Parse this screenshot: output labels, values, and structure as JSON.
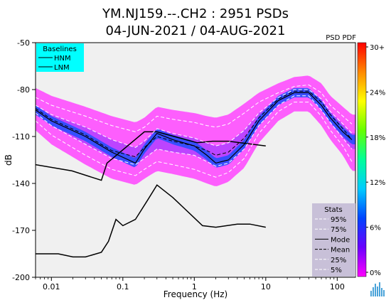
{
  "chart_data": {
    "type": "heatmap",
    "title_line1": "YM.NJ159.--.CH2 : 2951 PSDs",
    "title_line2": "04-JUN-2021 / 04-AUG-2021",
    "xlabel": "Frequency (Hz)",
    "ylabel": "dB",
    "xscale": "log",
    "xlim": [
      0.006,
      180
    ],
    "ylim": [
      -200,
      -50
    ],
    "y_ticks": [
      -50,
      -80,
      -110,
      -140,
      -170,
      -200
    ],
    "x_ticks": [
      {
        "value": 0.01,
        "label": "0.01"
      },
      {
        "value": 0.1,
        "label": "0.1"
      },
      {
        "value": 1,
        "label": "1"
      },
      {
        "value": 10,
        "label": "10"
      },
      {
        "value": 100,
        "label": "100"
      }
    ],
    "colorbar": {
      "label": "PSD PDF",
      "ticks": [
        "30+",
        "24%",
        "18%",
        "12%",
        "6%",
        "0%"
      ],
      "colors": [
        "#ff00ff",
        "#6a00ff",
        "#0044ff",
        "#00ccff",
        "#00ff99",
        "#66ff00",
        "#ffff00",
        "#ff8800",
        "#ff0000"
      ]
    },
    "baselines_legend": {
      "title": "Baselines",
      "items": [
        "HNM",
        "LNM"
      ],
      "bg": "#00ffff"
    },
    "stats_legend": {
      "title": "Stats",
      "items": [
        {
          "label": "95%",
          "style": "dashed-white"
        },
        {
          "label": "75%",
          "style": "dashed-white"
        },
        {
          "label": "Mode",
          "style": "solid-black"
        },
        {
          "label": "Mean",
          "style": "dashed-black"
        },
        {
          "label": "25%",
          "style": "dashed-white"
        },
        {
          "label": "5%",
          "style": "dashed-white"
        }
      ],
      "bg": "#c8c0d8"
    },
    "series": [
      {
        "name": "HNM",
        "x": [
          0.006,
          0.0195,
          0.05,
          0.06,
          0.2,
          0.3,
          1.1,
          1.8,
          3.0,
          10
        ],
        "y": [
          -128,
          -132,
          -138,
          -127,
          -107,
          -107,
          -114,
          -113,
          -113,
          -116
        ]
      },
      {
        "name": "LNM",
        "x": [
          0.006,
          0.0125,
          0.02,
          0.03,
          0.05,
          0.063,
          0.08,
          0.1,
          0.15,
          0.22,
          0.3,
          0.5,
          1.0,
          1.3,
          2.0,
          4.0,
          6.0,
          10
        ],
        "y": [
          -185,
          -185,
          -187,
          -187,
          -184,
          -177,
          -163,
          -167,
          -163,
          -151,
          -141,
          -149,
          -162,
          -167,
          -168,
          -166,
          -166,
          -168
        ]
      },
      {
        "name": "Mode",
        "x": [
          0.006,
          0.01,
          0.03,
          0.07,
          0.15,
          0.2,
          0.3,
          0.5,
          1.0,
          1.5,
          2.0,
          3.0,
          5.0,
          8.0,
          15,
          25,
          40,
          60,
          80,
          120,
          160
        ],
        "y": [
          -93,
          -100,
          -110,
          -120,
          -127,
          -118,
          -108,
          -112,
          -116,
          -122,
          -127,
          -125,
          -115,
          -100,
          -87,
          -82,
          -82,
          -90,
          -98,
          -107,
          -112
        ]
      },
      {
        "name": "Mean",
        "x": [
          0.006,
          0.01,
          0.03,
          0.07,
          0.15,
          0.2,
          0.3,
          0.5,
          1.0,
          1.5,
          2.0,
          3.0,
          5.0,
          8.0,
          15,
          25,
          40,
          60,
          80,
          120,
          160
        ],
        "y": [
          -92,
          -99,
          -109,
          -119,
          -123,
          -117,
          -110,
          -113,
          -116,
          -119,
          -122,
          -120,
          -111,
          -98,
          -86,
          -81,
          -81,
          -88,
          -96,
          -105,
          -112
        ]
      },
      {
        "name": "95%",
        "x": [
          0.006,
          0.01,
          0.03,
          0.07,
          0.15,
          0.2,
          0.3,
          0.5,
          1.0,
          1.5,
          2.0,
          3.0,
          5.0,
          8.0,
          15,
          25,
          40,
          60,
          80,
          120,
          160
        ],
        "y": [
          -85,
          -90,
          -97,
          -103,
          -107,
          -104,
          -97,
          -99,
          -101,
          -103,
          -104,
          -102,
          -95,
          -88,
          -82,
          -78,
          -77,
          -82,
          -90,
          -97,
          -102
        ]
      },
      {
        "name": "75%",
        "x": [
          0.006,
          0.01,
          0.03,
          0.07,
          0.15,
          0.2,
          0.3,
          0.5,
          1.0,
          1.5,
          2.0,
          3.0,
          5.0,
          8.0,
          15,
          25,
          40,
          60,
          80,
          120,
          160
        ],
        "y": [
          -90,
          -96,
          -104,
          -112,
          -117,
          -113,
          -105,
          -108,
          -111,
          -114,
          -116,
          -114,
          -106,
          -95,
          -85,
          -80,
          -80,
          -86,
          -94,
          -102,
          -108
        ]
      },
      {
        "name": "25%",
        "x": [
          0.006,
          0.01,
          0.03,
          0.07,
          0.15,
          0.2,
          0.3,
          0.5,
          1.0,
          1.5,
          2.0,
          3.0,
          5.0,
          8.0,
          15,
          25,
          40,
          60,
          80,
          120,
          160
        ],
        "y": [
          -95,
          -103,
          -115,
          -124,
          -128,
          -124,
          -118,
          -120,
          -122,
          -126,
          -129,
          -127,
          -118,
          -103,
          -90,
          -84,
          -84,
          -93,
          -101,
          -111,
          -118
        ]
      },
      {
        "name": "5%",
        "x": [
          0.006,
          0.01,
          0.03,
          0.07,
          0.15,
          0.2,
          0.3,
          0.5,
          1.0,
          1.5,
          2.0,
          3.0,
          5.0,
          8.0,
          15,
          25,
          40,
          60,
          80,
          120,
          160
        ],
        "y": [
          -100,
          -109,
          -122,
          -131,
          -135,
          -131,
          -126,
          -128,
          -131,
          -134,
          -136,
          -133,
          -124,
          -108,
          -94,
          -88,
          -88,
          -97,
          -106,
          -116,
          -126
        ]
      }
    ]
  }
}
